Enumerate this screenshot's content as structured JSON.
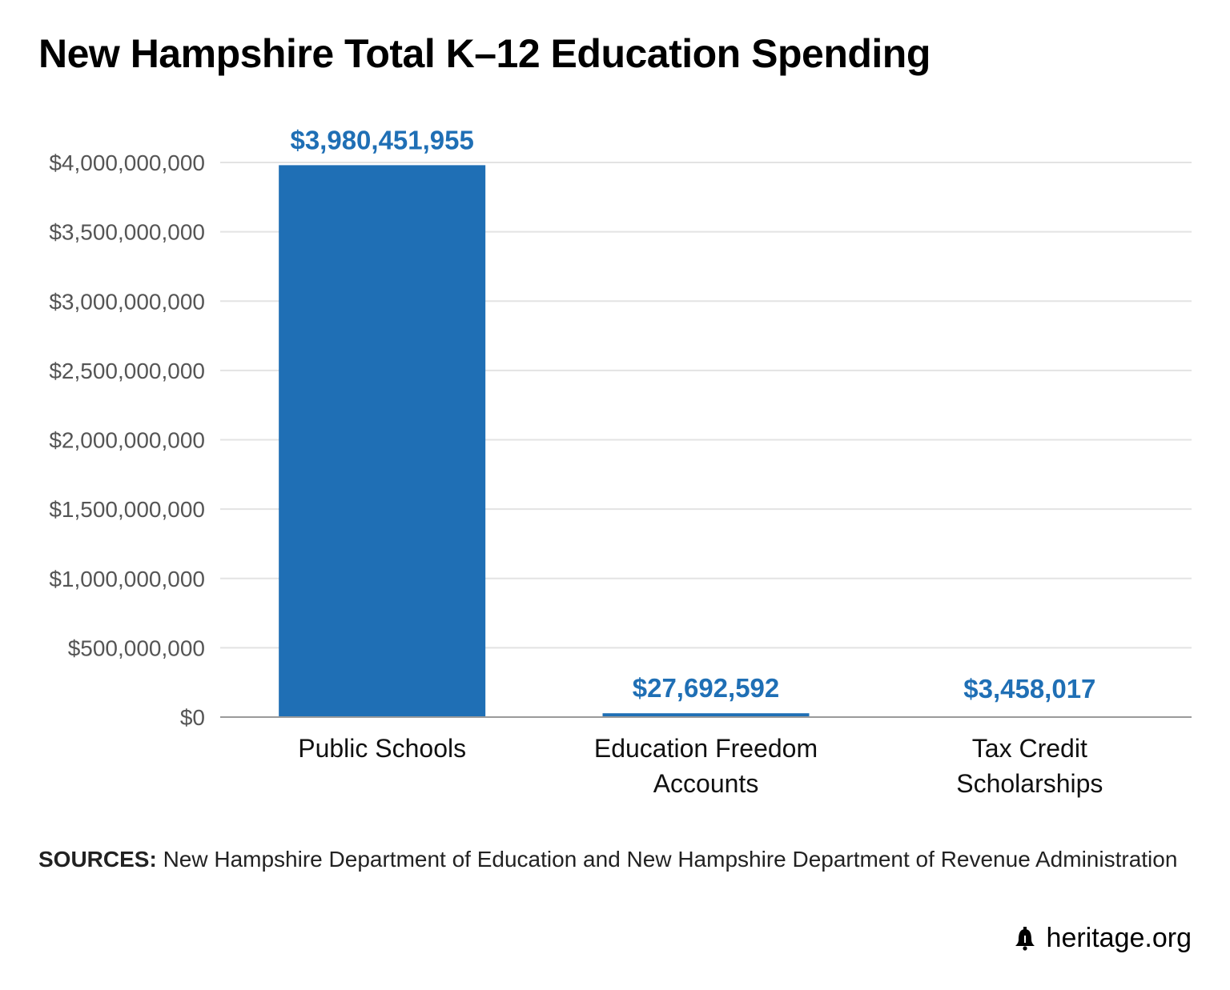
{
  "title": "New Hampshire Total K–12 Education Spending",
  "chart_data": {
    "type": "bar",
    "categories": [
      [
        "Public Schools"
      ],
      [
        "Education Freedom",
        "Accounts"
      ],
      [
        "Tax Credit",
        "Scholarships"
      ]
    ],
    "values": [
      3980451955,
      27692592,
      3458017
    ],
    "data_labels": [
      "$3,980,451,955",
      "$27,692,592",
      "$3,458,017"
    ],
    "yticks": [
      0,
      500000000,
      1000000000,
      1500000000,
      2000000000,
      2500000000,
      3000000000,
      3500000000,
      4000000000
    ],
    "ytick_labels": [
      "$0",
      "$500,000,000",
      "$1,000,000,000",
      "$1,500,000,000",
      "$2,000,000,000",
      "$2,500,000,000",
      "$3,000,000,000",
      "$3,500,000,000",
      "$4,000,000,000"
    ],
    "ylim": [
      0,
      4000000000
    ],
    "grid": true,
    "bar_color": "#1f6fb5",
    "label_color": "#1f6fb5"
  },
  "sources": {
    "label": "SOURCES:",
    "text": "New Hampshire Department of Education and New Hampshire Department of Revenue Administration"
  },
  "brand": {
    "icon": "liberty-bell-icon",
    "text": "heritage.org"
  }
}
